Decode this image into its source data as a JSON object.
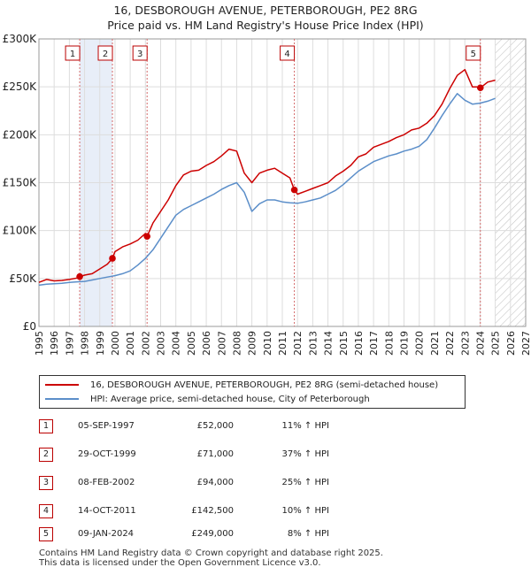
{
  "title_line1": "16, DESBOROUGH AVENUE, PETERBOROUGH, PE2 8RG",
  "title_line2": "Price paid vs. HM Land Registry's House Price Index (HPI)",
  "colors": {
    "property": "#cc0000",
    "hpi": "#5b8ec9",
    "grid": "#dddddd",
    "highlight": "#e8eef8",
    "marker_line": "#d46a6a"
  },
  "legend": {
    "property_label": "16, DESBOROUGH AVENUE, PETERBOROUGH, PE2 8RG (semi-detached house)",
    "hpi_label": "HPI: Average price, semi-detached house, City of Peterborough"
  },
  "transactions": [
    {
      "num": "1",
      "date": "05-SEP-1997",
      "price": "£52,000",
      "hpi": "11% ↑ HPI"
    },
    {
      "num": "2",
      "date": "29-OCT-1999",
      "price": "£71,000",
      "hpi": "37% ↑ HPI"
    },
    {
      "num": "3",
      "date": "08-FEB-2002",
      "price": "£94,000",
      "hpi": "25% ↑ HPI"
    },
    {
      "num": "4",
      "date": "14-OCT-2011",
      "price": "£142,500",
      "hpi": "10% ↑ HPI"
    },
    {
      "num": "5",
      "date": "09-JAN-2024",
      "price": "£249,000",
      "hpi": "8% ↑ HPI"
    }
  ],
  "footer": {
    "line1": "Contains HM Land Registry data © Crown copyright and database right 2025.",
    "line2": "This data is licensed under the Open Government Licence v3.0."
  },
  "chart_data": {
    "type": "line",
    "title": "16, DESBOROUGH AVENUE, PETERBOROUGH, PE2 8RG — Price paid vs. HM Land Registry's House Price Index (HPI)",
    "xlabel": "",
    "ylabel": "",
    "xlim": [
      1995,
      2027
    ],
    "ylim": [
      0,
      300000
    ],
    "x_ticks": [
      1995,
      1996,
      1997,
      1998,
      1999,
      2000,
      2001,
      2002,
      2003,
      2004,
      2005,
      2006,
      2007,
      2008,
      2009,
      2010,
      2011,
      2012,
      2013,
      2014,
      2015,
      2016,
      2017,
      2018,
      2019,
      2020,
      2021,
      2022,
      2023,
      2024,
      2025,
      2026,
      2027
    ],
    "y_ticks": [
      {
        "value": 0,
        "label": "£0"
      },
      {
        "value": 50000,
        "label": "£50K"
      },
      {
        "value": 100000,
        "label": "£100K"
      },
      {
        "value": 150000,
        "label": "£150K"
      },
      {
        "value": 200000,
        "label": "£200K"
      },
      {
        "value": 250000,
        "label": "£250K"
      },
      {
        "value": 300000,
        "label": "£300K"
      }
    ],
    "grid": true,
    "forecast_start": 2025.0,
    "legend_position": "below",
    "sales": [
      {
        "label": "1",
        "x": 1997.68,
        "y": 52000
      },
      {
        "label": "2",
        "x": 1999.83,
        "y": 71000
      },
      {
        "label": "3",
        "x": 2002.11,
        "y": 94000
      },
      {
        "label": "4",
        "x": 2011.79,
        "y": 142500
      },
      {
        "label": "5",
        "x": 2024.02,
        "y": 249000
      }
    ],
    "highlight_spans": [
      [
        1997.68,
        1999.83
      ]
    ],
    "series": [
      {
        "name": "16, DESBOROUGH AVENUE, PETERBOROUGH, PE2 8RG (semi-detached house)",
        "color": "#cc0000",
        "x": [
          1995.0,
          1995.5,
          1996.0,
          1996.5,
          1997.0,
          1997.5,
          1997.68,
          1998.0,
          1998.5,
          1999.0,
          1999.5,
          1999.83,
          2000.0,
          2000.5,
          2001.0,
          2001.5,
          2002.0,
          2002.11,
          2002.5,
          2003.0,
          2003.5,
          2004.0,
          2004.5,
          2005.0,
          2005.5,
          2006.0,
          2006.5,
          2007.0,
          2007.5,
          2008.0,
          2008.5,
          2009.0,
          2009.5,
          2010.0,
          2010.5,
          2011.0,
          2011.5,
          2011.79,
          2012.0,
          2012.5,
          2013.0,
          2013.5,
          2014.0,
          2014.5,
          2015.0,
          2015.5,
          2016.0,
          2016.5,
          2017.0,
          2017.5,
          2018.0,
          2018.5,
          2019.0,
          2019.5,
          2020.0,
          2020.5,
          2021.0,
          2021.5,
          2022.0,
          2022.5,
          2023.0,
          2023.5,
          2024.0,
          2024.02,
          2024.5,
          2025.0
        ],
        "y": [
          46000,
          49000,
          47500,
          48000,
          49000,
          50500,
          52000,
          53500,
          55000,
          60000,
          65000,
          71000,
          78000,
          83000,
          86000,
          90000,
          97000,
          94000,
          108000,
          120000,
          132000,
          147000,
          158000,
          162000,
          163000,
          168000,
          172000,
          178000,
          185000,
          183000,
          160000,
          150000,
          160000,
          163000,
          165000,
          160000,
          155000,
          142500,
          138000,
          141000,
          144000,
          147000,
          150000,
          157000,
          162000,
          168000,
          177000,
          180000,
          187000,
          190000,
          193000,
          197000,
          200000,
          205000,
          207000,
          212000,
          220000,
          232000,
          248000,
          262000,
          268000,
          250000,
          250000,
          249000,
          255000,
          257000
        ]
      },
      {
        "name": "HPI: Average price, semi-detached house, City of Peterborough",
        "color": "#5b8ec9",
        "x": [
          1995.0,
          1995.5,
          1996.0,
          1996.5,
          1997.0,
          1997.5,
          1998.0,
          1998.5,
          1999.0,
          1999.5,
          2000.0,
          2000.5,
          2001.0,
          2001.5,
          2002.0,
          2002.5,
          2003.0,
          2003.5,
          2004.0,
          2004.5,
          2005.0,
          2005.5,
          2006.0,
          2006.5,
          2007.0,
          2007.5,
          2008.0,
          2008.5,
          2009.0,
          2009.5,
          2010.0,
          2010.5,
          2011.0,
          2011.5,
          2012.0,
          2012.5,
          2013.0,
          2013.5,
          2014.0,
          2014.5,
          2015.0,
          2015.5,
          2016.0,
          2016.5,
          2017.0,
          2017.5,
          2018.0,
          2018.5,
          2019.0,
          2019.5,
          2020.0,
          2020.5,
          2021.0,
          2021.5,
          2022.0,
          2022.5,
          2023.0,
          2023.5,
          2024.0,
          2024.5,
          2025.0
        ],
        "y": [
          43000,
          44000,
          44500,
          45000,
          46000,
          46500,
          47000,
          48500,
          50000,
          51500,
          53000,
          55000,
          58000,
          64000,
          71000,
          80000,
          92000,
          104000,
          116000,
          122000,
          126000,
          130000,
          134000,
          138000,
          143000,
          147000,
          150000,
          140000,
          120000,
          128000,
          132000,
          132000,
          130000,
          129000,
          128500,
          130000,
          132000,
          134000,
          138000,
          142000,
          148000,
          155000,
          162000,
          167000,
          172000,
          175000,
          178000,
          180000,
          183000,
          185000,
          188000,
          195000,
          207000,
          220000,
          232000,
          243000,
          236000,
          232000,
          233000,
          235000,
          238000
        ]
      }
    ]
  }
}
